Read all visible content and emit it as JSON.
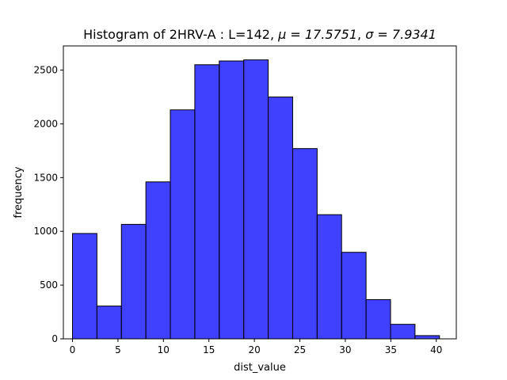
{
  "chart_data": {
    "type": "bar",
    "title_prefix": "Histogram of 2HRV-A : L=142, ",
    "title_mu": "μ = 17.5751",
    "title_sep": ", ",
    "title_sigma": "σ = 7.9341",
    "xlabel": "dist_value",
    "ylabel": "frequency",
    "xlim": [
      -1.0,
      42.2
    ],
    "ylim": [
      0,
      2725
    ],
    "xticks": [
      0,
      5,
      10,
      15,
      20,
      25,
      30,
      35,
      40
    ],
    "yticks": [
      0,
      500,
      1000,
      1500,
      2000,
      2500
    ],
    "bin_edges": [
      0,
      2.69,
      5.38,
      8.07,
      10.76,
      13.45,
      16.14,
      18.83,
      21.52,
      24.21,
      26.9,
      29.59,
      32.28,
      34.97,
      37.66,
      40.35
    ],
    "values": [
      980,
      305,
      1065,
      1460,
      2130,
      2550,
      2585,
      2595,
      2250,
      1770,
      1155,
      805,
      365,
      135,
      30
    ],
    "bar_color": "#0000ff",
    "bar_opacity": 0.75,
    "edge_color": "#000000",
    "grid": false
  }
}
